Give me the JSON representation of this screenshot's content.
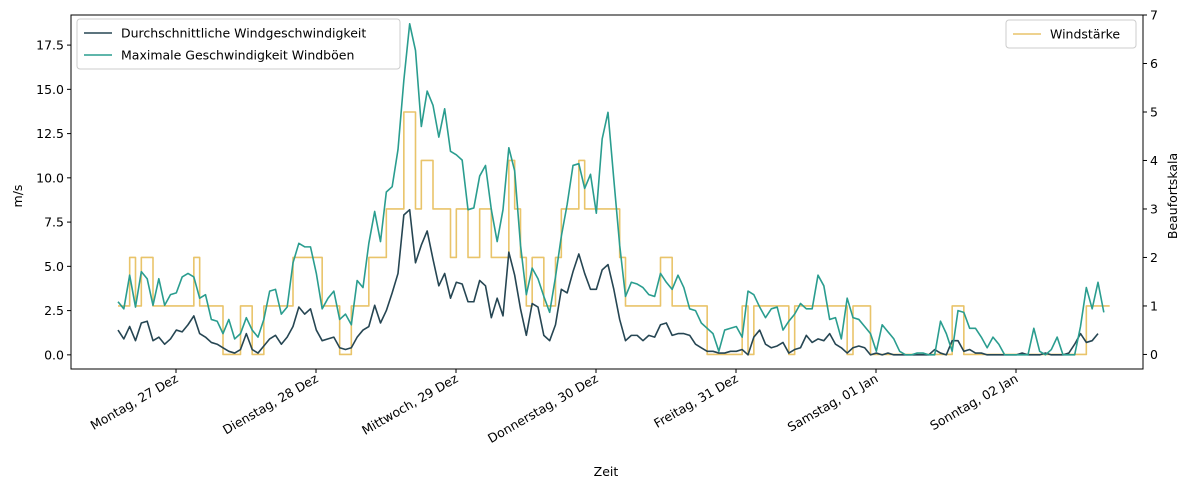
{
  "chart_data": {
    "type": "line",
    "title": "",
    "xlabel": "Zeit",
    "ylabel": "m/s",
    "ylabel_right": "Beaufortskala",
    "x_start_hour_offset": 0,
    "x_tick_labels": [
      "Montag, 27 Dez",
      "Dienstag, 28 Dez",
      "Mittwoch, 29 Dez",
      "Donnerstag, 30 Dez",
      "Freitag, 31 Dez",
      "Samstag, 01 Jan",
      "Sonntag, 02 Jan"
    ],
    "y_ticks": [
      "0.0",
      "2.5",
      "5.0",
      "7.5",
      "10.0",
      "12.5",
      "15.0",
      "17.5"
    ],
    "y_ticks_right": [
      "0",
      "1",
      "2",
      "3",
      "4",
      "5",
      "6",
      "7"
    ],
    "ylim": [
      -0.8,
      19.2
    ],
    "ylim_right": [
      -0.3,
      7
    ],
    "grid": false,
    "legend_left": "top-left",
    "legend_right": "top-right",
    "colors": {
      "avg": "#264653",
      "gust": "#2a9d8f",
      "beaufort": "#e9c46a"
    },
    "series": [
      {
        "name": "Durchschnittliche Windgeschwindigkeit",
        "axis": "left",
        "values": [
          1.4,
          0.9,
          1.6,
          0.8,
          1.8,
          1.9,
          0.8,
          1.0,
          0.6,
          0.9,
          1.4,
          1.3,
          1.7,
          2.2,
          1.2,
          1.0,
          0.7,
          0.6,
          0.4,
          0.2,
          0.1,
          0.3,
          1.2,
          0.3,
          0.1,
          0.5,
          0.9,
          1.1,
          0.6,
          1.0,
          1.6,
          2.7,
          2.3,
          2.6,
          1.4,
          0.8,
          0.9,
          1.0,
          0.4,
          0.3,
          0.4,
          1.0,
          1.4,
          1.6,
          2.8,
          1.8,
          2.5,
          3.5,
          4.6,
          7.9,
          8.2,
          5.2,
          6.2,
          7.0,
          5.4,
          3.9,
          4.6,
          3.2,
          4.1,
          4.0,
          3.0,
          3.0,
          4.2,
          3.9,
          2.1,
          3.2,
          2.2,
          5.8,
          4.5,
          2.6,
          1.1,
          2.9,
          2.7,
          1.1,
          0.8,
          1.7,
          3.7,
          3.5,
          4.7,
          5.7,
          4.6,
          3.7,
          3.7,
          4.8,
          5.1,
          3.7,
          2.0,
          0.8,
          1.1,
          1.1,
          0.8,
          1.1,
          1.0,
          1.7,
          1.8,
          1.1,
          1.2,
          1.2,
          1.1,
          0.6,
          0.4,
          0.2,
          0.2,
          0.1,
          0.1,
          0.2,
          0.2,
          0.3,
          0.0,
          1.0,
          1.4,
          0.6,
          0.4,
          0.5,
          0.7,
          0.1,
          0.3,
          0.4,
          1.1,
          0.7,
          0.9,
          0.8,
          1.2,
          0.6,
          0.4,
          0.1,
          0.4,
          0.5,
          0.4,
          0.0,
          0.1,
          0.0,
          0.1,
          0.0,
          0.0,
          0.0,
          0.0,
          0.0,
          0.0,
          0.0,
          0.3,
          0.1,
          0.0,
          0.8,
          0.8,
          0.2,
          0.3,
          0.1,
          0.1,
          0.0,
          0.0,
          0.0,
          0.0,
          0.0,
          0.0,
          0.1,
          0.0,
          0.0,
          0.0,
          0.1,
          0.0,
          0.0,
          0.0,
          0.1,
          0.6,
          1.2,
          0.7,
          0.8,
          1.2
        ]
      },
      {
        "name": "Maximale Geschwindigkeit Windböen",
        "axis": "left",
        "values": [
          3.0,
          2.6,
          4.5,
          2.7,
          4.7,
          4.3,
          2.8,
          4.3,
          2.8,
          3.4,
          3.5,
          4.4,
          4.6,
          4.4,
          3.2,
          3.4,
          2.0,
          1.9,
          1.2,
          2.0,
          0.9,
          1.2,
          2.1,
          1.4,
          1.0,
          2.0,
          3.6,
          3.7,
          2.3,
          2.7,
          5.2,
          6.3,
          6.1,
          6.1,
          4.6,
          2.6,
          3.2,
          3.6,
          2.0,
          2.3,
          1.7,
          4.2,
          3.8,
          6.3,
          8.1,
          6.4,
          9.2,
          9.5,
          11.6,
          15.5,
          18.7,
          17.2,
          12.9,
          14.9,
          14.1,
          12.3,
          13.9,
          11.5,
          11.3,
          11.0,
          8.2,
          8.3,
          10.1,
          10.7,
          8.2,
          6.4,
          8.2,
          11.7,
          10.4,
          6.2,
          3.4,
          4.9,
          4.3,
          3.3,
          2.4,
          4.4,
          6.7,
          8.5,
          10.7,
          10.8,
          9.4,
          10.2,
          8.0,
          12.2,
          13.7,
          9.9,
          6.2,
          3.3,
          4.1,
          4.0,
          3.8,
          3.4,
          3.3,
          4.6,
          4.1,
          3.7,
          4.5,
          3.8,
          2.6,
          2.5,
          1.8,
          1.5,
          1.2,
          0.2,
          1.4,
          1.5,
          1.6,
          1.0,
          3.6,
          3.4,
          2.7,
          2.1,
          2.6,
          2.7,
          1.4,
          1.9,
          2.3,
          2.9,
          2.6,
          2.6,
          4.5,
          3.9,
          2.0,
          2.1,
          0.9,
          3.2,
          2.1,
          2.0,
          1.6,
          1.2,
          0.2,
          1.7,
          1.3,
          0.9,
          0.2,
          0.0,
          0.0,
          0.1,
          0.1,
          0.0,
          0.0,
          1.9,
          1.2,
          0.2,
          2.5,
          2.4,
          1.5,
          1.5,
          1.0,
          0.4,
          1.0,
          0.6,
          0.0,
          0.0,
          0.0,
          0.0,
          0.0,
          1.5,
          0.2,
          0.0,
          0.3,
          1.0,
          0.0,
          0.0,
          0.0,
          1.6,
          3.8,
          2.6,
          4.1,
          2.4
        ]
      },
      {
        "name": "Windstärke",
        "axis": "right",
        "values": [
          1,
          1,
          2,
          1,
          2,
          2,
          1,
          1,
          1,
          1,
          1,
          1,
          1,
          2,
          1,
          1,
          1,
          1,
          0,
          0,
          0,
          1,
          1,
          0,
          0,
          1,
          1,
          1,
          1,
          1,
          2,
          2,
          2,
          2,
          2,
          1,
          1,
          1,
          0,
          0,
          1,
          1,
          1,
          2,
          2,
          2,
          3,
          3,
          3,
          5,
          5,
          3,
          4,
          4,
          3,
          3,
          3,
          2,
          3,
          3,
          2,
          2,
          3,
          3,
          2,
          2,
          2,
          4,
          3,
          2,
          1,
          2,
          2,
          1,
          1,
          2,
          3,
          3,
          3,
          4,
          3,
          3,
          3,
          3,
          3,
          3,
          2,
          1,
          1,
          1,
          1,
          1,
          1,
          2,
          2,
          1,
          1,
          1,
          1,
          1,
          1,
          0,
          0,
          0,
          0,
          0,
          0,
          1,
          0,
          1,
          1,
          1,
          1,
          1,
          1,
          0,
          1,
          1,
          1,
          1,
          1,
          1,
          1,
          1,
          1,
          0,
          1,
          1,
          1,
          0,
          0,
          0,
          0,
          0,
          0,
          0,
          0,
          0,
          0,
          0,
          0,
          0,
          0,
          1,
          1,
          0,
          0,
          0,
          0,
          0,
          0,
          0,
          0,
          0,
          0,
          0,
          0,
          0,
          0,
          0,
          0,
          0,
          0,
          0,
          0,
          0,
          1,
          1,
          1,
          1,
          1
        ]
      }
    ]
  }
}
